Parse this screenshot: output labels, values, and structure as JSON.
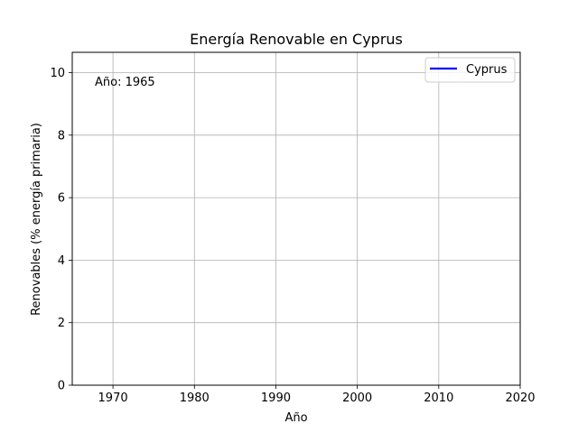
{
  "chart_data": {
    "type": "line",
    "title": "Energía Renovable en Cyprus",
    "xlabel": "Año",
    "ylabel": "Renovables (% energía primaria)",
    "xlim": [
      1965,
      2020
    ],
    "ylim": [
      0,
      10.65
    ],
    "xticks": [
      1970,
      1980,
      1990,
      2000,
      2010,
      2020
    ],
    "yticks": [
      0,
      2,
      4,
      6,
      8,
      10
    ],
    "grid": true,
    "legend_position": "top-right",
    "annotation": "Año: 1965",
    "series": [
      {
        "name": "Cyprus",
        "color": "#0000ff",
        "x": [],
        "y": []
      }
    ]
  }
}
